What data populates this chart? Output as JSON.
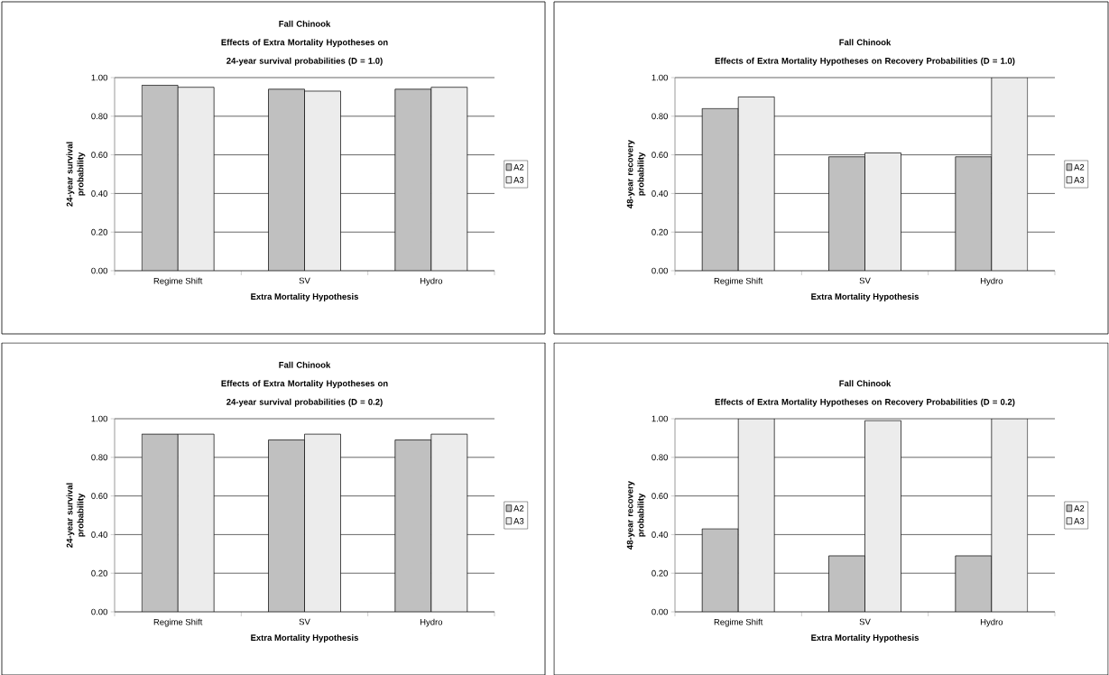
{
  "chart_data": [
    {
      "type": "bar",
      "title": "Fall Chinook",
      "subtitle": "Effects of Extra Mortality Hypotheses on 24-year survival probabilities (D = 1.0)",
      "xlabel": "Extra Mortality Hypothesis",
      "ylabel": "24-year survival probability",
      "categories": [
        "Regime Shift",
        "SV",
        "Hydro"
      ],
      "series": [
        {
          "name": "A2",
          "color": "#c0c0c0",
          "values": [
            0.96,
            0.94,
            0.94
          ]
        },
        {
          "name": "A3",
          "color": "#ececec",
          "values": [
            0.95,
            0.93,
            0.95
          ]
        }
      ],
      "ylim": [
        0,
        1
      ],
      "yticks": [
        {
          "value": 0,
          "label": "0.00"
        },
        {
          "value": 0.2,
          "label": "0.20"
        },
        {
          "value": 0.4,
          "label": "0.40"
        },
        {
          "value": 0.6,
          "label": "0.60"
        },
        {
          "value": 0.8,
          "label": "0.80"
        },
        {
          "value": 1,
          "label": "1.00"
        }
      ],
      "grid": "y",
      "legend": "right"
    },
    {
      "type": "bar",
      "title": "Fall Chinook",
      "subtitle": "Effects of Extra Mortality Hypotheses on Recovery Probabilities (D = 1.0)",
      "xlabel": "Extra Mortality Hypothesis",
      "ylabel": "48-year recovery probability",
      "categories": [
        "Regime Shift",
        "SV",
        "Hydro"
      ],
      "series": [
        {
          "name": "A2",
          "color": "#c0c0c0",
          "values": [
            0.84,
            0.59,
            0.59
          ]
        },
        {
          "name": "A3",
          "color": "#ececec",
          "values": [
            0.9,
            0.61,
            1.0
          ]
        }
      ],
      "ylim": [
        0,
        1
      ],
      "yticks": [
        {
          "value": 0,
          "label": "0.00"
        },
        {
          "value": 0.2,
          "label": "0.20"
        },
        {
          "value": 0.4,
          "label": "0.40"
        },
        {
          "value": 0.6,
          "label": "0.60"
        },
        {
          "value": 0.8,
          "label": "0.80"
        },
        {
          "value": 1,
          "label": "1.00"
        }
      ],
      "grid": "y",
      "legend": "right"
    },
    {
      "type": "bar",
      "title": "Fall Chinook",
      "subtitle": "Effects of Extra Mortality Hypotheses on 24-year survival probabilities (D = 0.2)",
      "xlabel": "Extra Mortality Hypothesis",
      "ylabel": "24-year survival probability",
      "categories": [
        "Regime Shift",
        "SV",
        "Hydro"
      ],
      "series": [
        {
          "name": "A2",
          "color": "#c0c0c0",
          "values": [
            0.92,
            0.89,
            0.89
          ]
        },
        {
          "name": "A3",
          "color": "#ececec",
          "values": [
            0.92,
            0.92,
            0.92
          ]
        }
      ],
      "ylim": [
        0,
        1
      ],
      "yticks": [
        {
          "value": 0,
          "label": "0.00"
        },
        {
          "value": 0.2,
          "label": "0.20"
        },
        {
          "value": 0.4,
          "label": "0.40"
        },
        {
          "value": 0.6,
          "label": "0.60"
        },
        {
          "value": 0.8,
          "label": "0.80"
        },
        {
          "value": 1,
          "label": "1.00"
        }
      ],
      "grid": "y",
      "legend": "right"
    },
    {
      "type": "bar",
      "title": "Fall Chinook",
      "subtitle": "Effects of Extra Mortality Hypotheses on Recovery Probabilities (D = 0.2)",
      "xlabel": "Extra Mortality Hypothesis",
      "ylabel": "48-year recovery probability",
      "categories": [
        "Regime Shift",
        "SV",
        "Hydro"
      ],
      "series": [
        {
          "name": "A2",
          "color": "#c0c0c0",
          "values": [
            0.43,
            0.29,
            0.29
          ]
        },
        {
          "name": "A3",
          "color": "#ececec",
          "values": [
            1.0,
            0.99,
            1.0
          ]
        }
      ],
      "ylim": [
        0,
        1
      ],
      "yticks": [
        {
          "value": 0,
          "label": "0.00"
        },
        {
          "value": 0.2,
          "label": "0.20"
        },
        {
          "value": 0.4,
          "label": "0.40"
        },
        {
          "value": 0.6,
          "label": "0.60"
        },
        {
          "value": 0.8,
          "label": "0.80"
        },
        {
          "value": 1,
          "label": "1.00"
        }
      ],
      "grid": "y",
      "legend": "right"
    }
  ]
}
